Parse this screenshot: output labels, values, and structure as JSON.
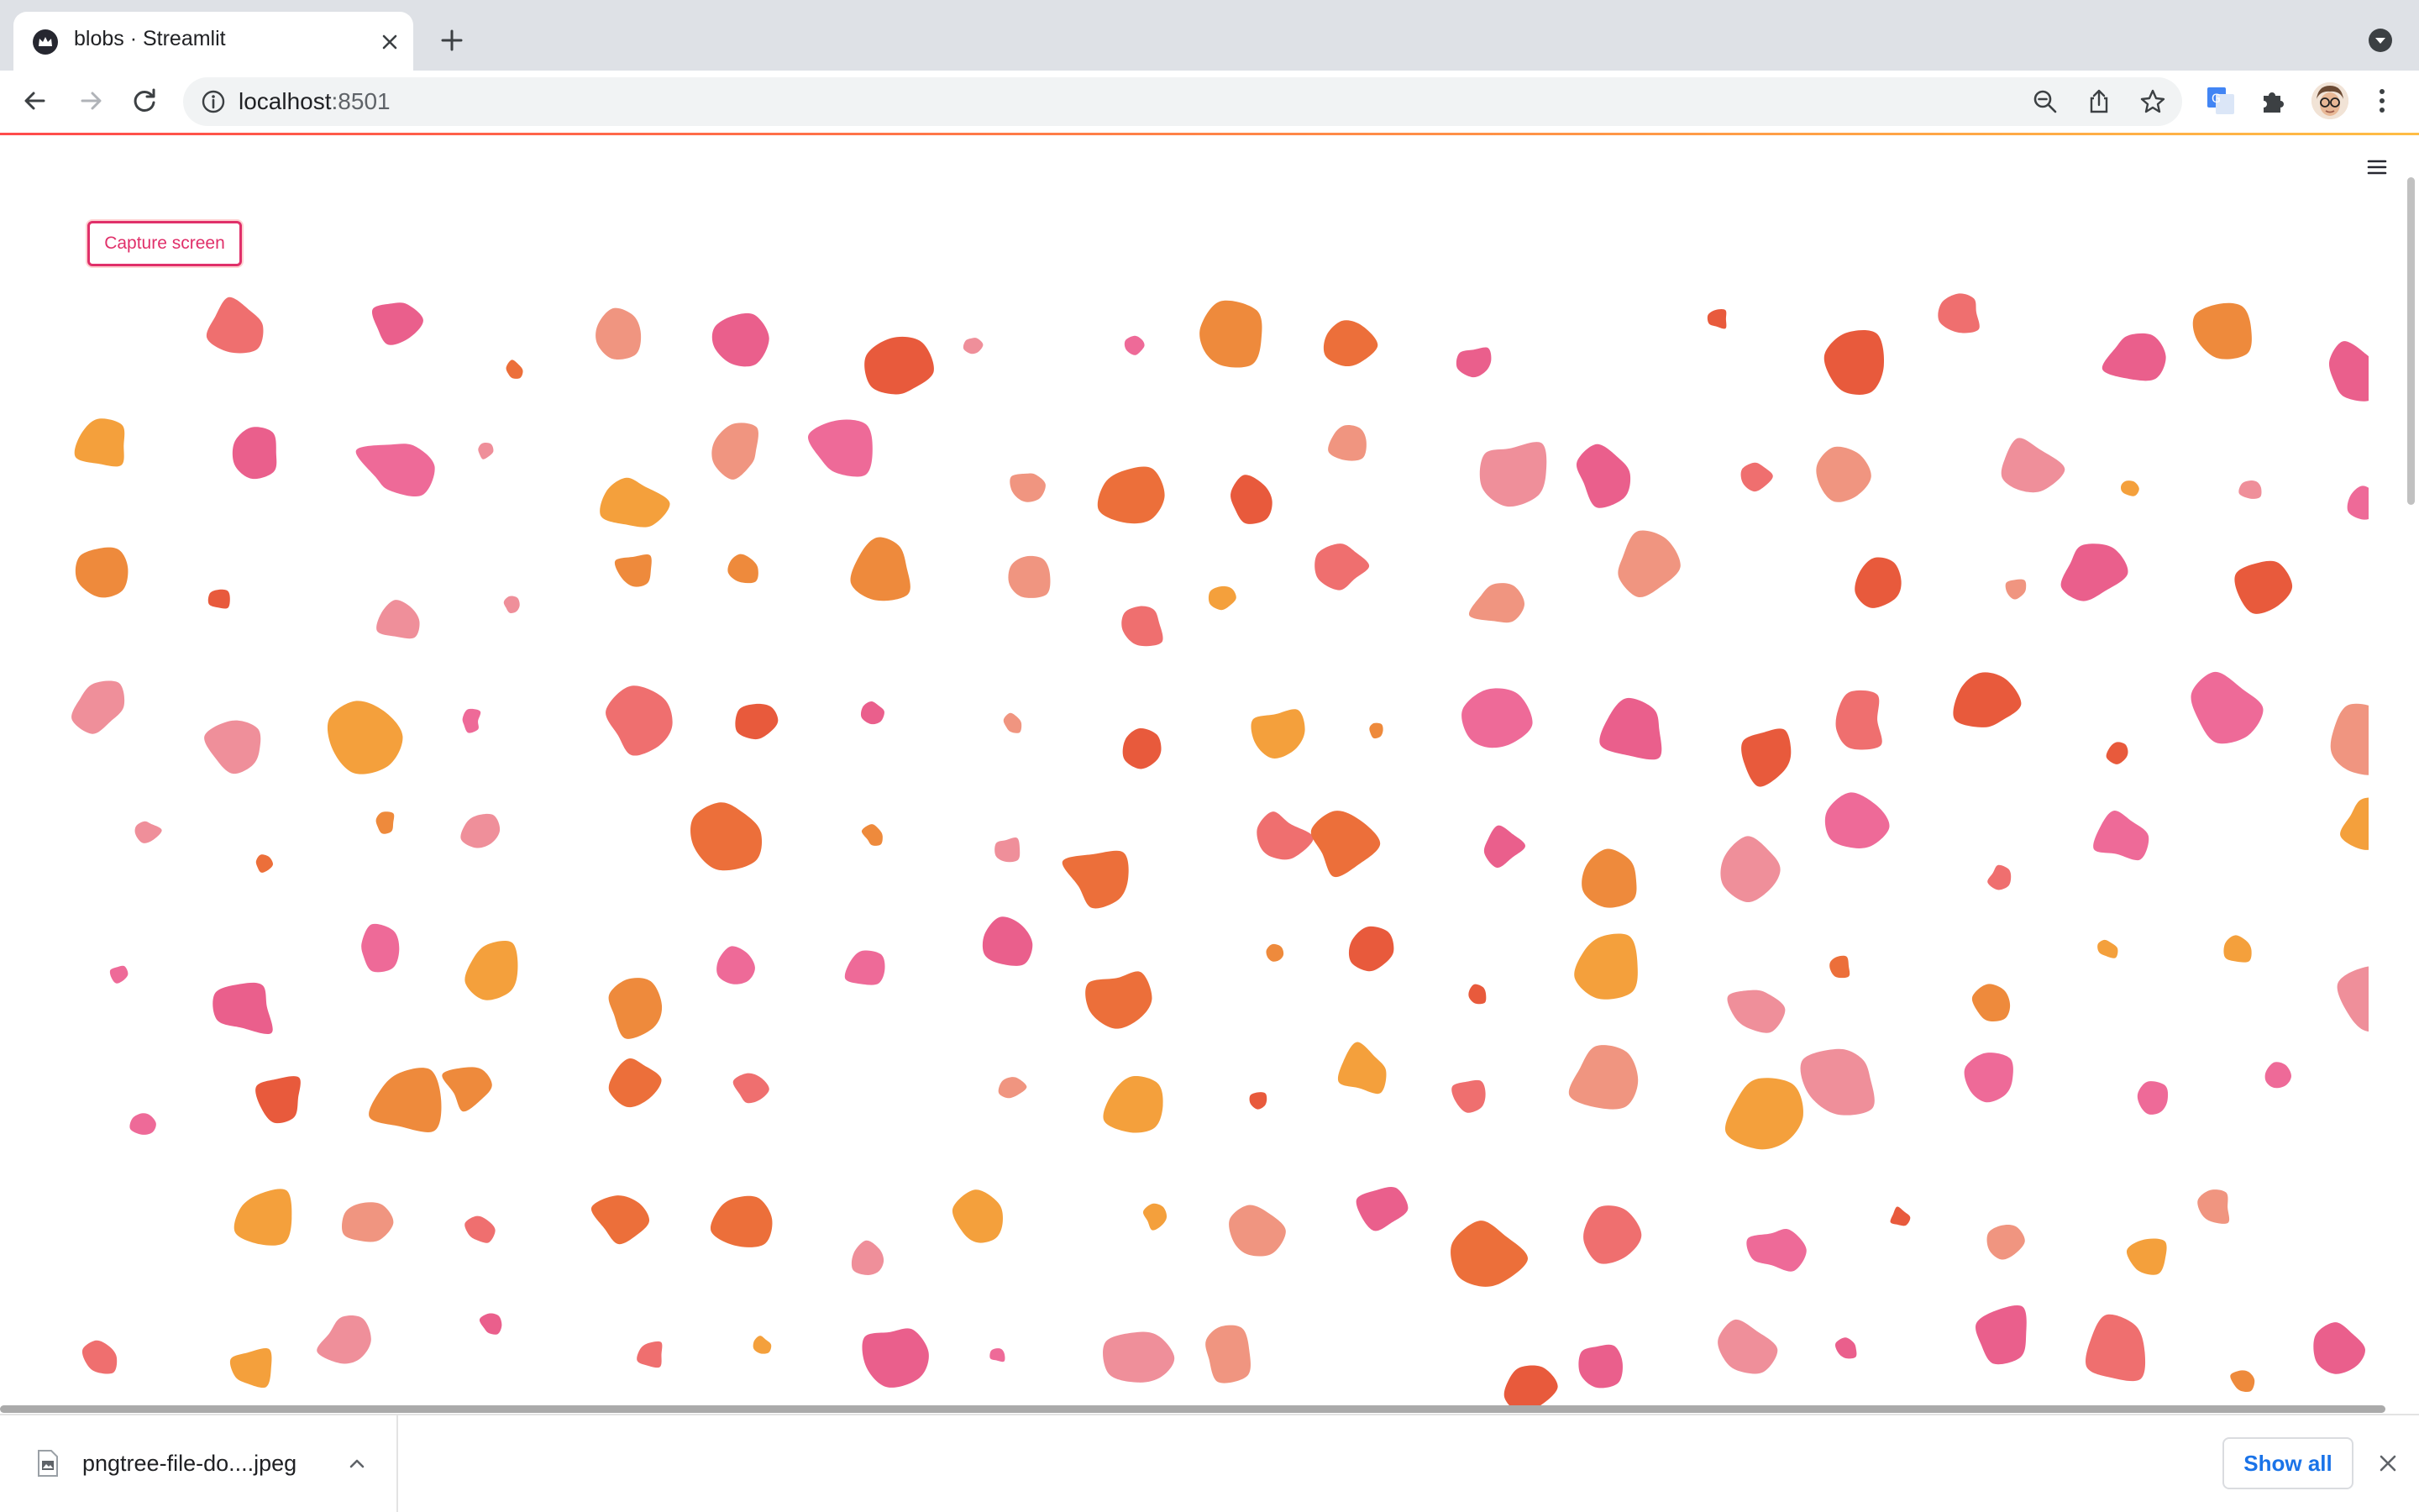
{
  "tab": {
    "title": "blobs · Streamlit",
    "favicon": "streamlit-crown-icon"
  },
  "address_bar": {
    "host": "localhost",
    "port": ":8501"
  },
  "page": {
    "capture_button_label": "Capture screen",
    "blob_colors": [
      "#f4a03c",
      "#ee8a3c",
      "#ec6f3a",
      "#e85a3c",
      "#ef6f6f",
      "#f09580",
      "#ef8f9a",
      "#ee6a98",
      "#ea5f8c"
    ]
  },
  "download_shelf": {
    "file_name": "pngtree-file-do....jpeg",
    "show_all_label": "Show all"
  },
  "icons": [
    "back-icon",
    "forward-icon",
    "reload-icon",
    "info-icon",
    "zoom-out-icon",
    "share-icon",
    "star-icon",
    "translate-icon",
    "extensions-icon",
    "kebab-menu-icon",
    "hamburger-menu-icon"
  ]
}
